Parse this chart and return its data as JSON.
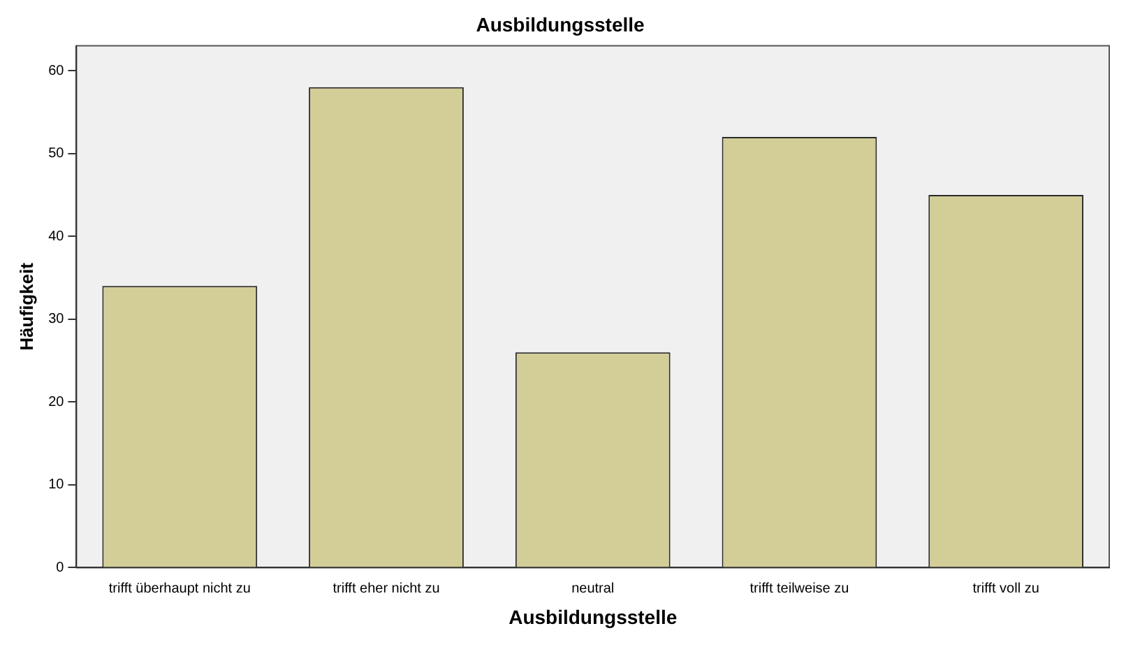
{
  "chart_data": {
    "type": "bar",
    "title": "Ausbildungsstelle",
    "xlabel": "Ausbildungsstelle",
    "ylabel": "Häufigkeit",
    "categories": [
      "trifft überhaupt nicht zu",
      "trifft eher nicht zu",
      "neutral",
      "trifft teilweise zu",
      "trifft voll zu"
    ],
    "values": [
      34,
      58,
      26,
      52,
      45
    ],
    "color": "#d3ce97",
    "ylim": [
      0,
      63
    ],
    "yticks": [
      0,
      10,
      20,
      30,
      40,
      50,
      60
    ],
    "grid": false,
    "legend": false
  }
}
